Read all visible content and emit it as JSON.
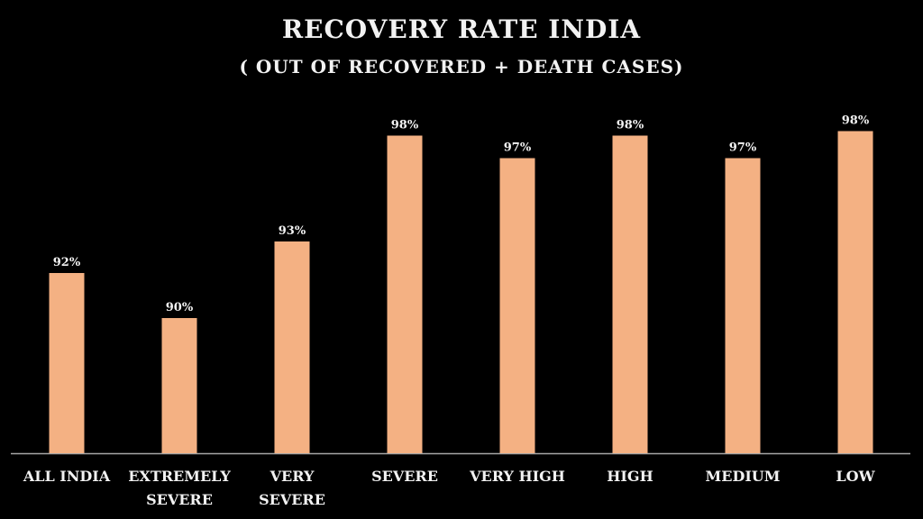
{
  "chart_data": {
    "type": "bar",
    "title": "RECOVERY RATE INDIA",
    "subtitle": "( OUT OF RECOVERED + DEATH CASES)",
    "categories": [
      "ALL INDIA",
      "EXTREMELY SEVERE",
      "VERY SEVERE",
      "SEVERE",
      "VERY HIGH",
      "HIGH",
      "MEDIUM",
      "LOW"
    ],
    "values": [
      92.0,
      90.0,
      93.4,
      98.1,
      97.1,
      98.1,
      97.1,
      98.3
    ],
    "data_labels": [
      "92%",
      "90%",
      "93%",
      "98%",
      "97%",
      "98%",
      "97%",
      "98%"
    ],
    "xlabel": "",
    "ylabel": "",
    "ylim": [
      84,
      100
    ],
    "grid": false,
    "bar_color": "#F4B183"
  }
}
